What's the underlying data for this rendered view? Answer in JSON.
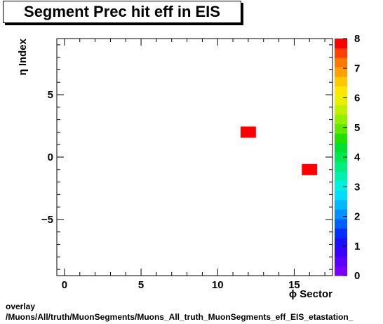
{
  "chart_data": {
    "type": "heatmap",
    "title": "Segment Prec hit eff in EIS",
    "xlabel": "ϕ Sector",
    "ylabel": "η Index",
    "xlim": [
      -0.5,
      17.5
    ],
    "ylim": [
      -9.5,
      9.5
    ],
    "x_ticks": [
      0,
      5,
      10,
      15
    ],
    "y_ticks": [
      -5,
      0,
      5
    ],
    "bin_width": 1,
    "cells": [
      {
        "x": 12,
        "y": 2,
        "value": 8
      },
      {
        "x": 16,
        "y": -1,
        "value": 8
      }
    ],
    "colorbar": {
      "min": 0,
      "max": 8,
      "ticks": [
        0,
        1,
        2,
        3,
        4,
        5,
        6,
        7,
        8
      ],
      "colors": [
        "#7a00ff",
        "#5a00ff",
        "#3a00ff",
        "#1a10ff",
        "#0030ff",
        "#0060ff",
        "#0090ff",
        "#00b8ff",
        "#00dcff",
        "#00f0e0",
        "#00f0b0",
        "#00ee80",
        "#00e850",
        "#00e030",
        "#20e000",
        "#60e800",
        "#90f000",
        "#c0f000",
        "#e8f000",
        "#ffe800",
        "#ffc800",
        "#ffa000",
        "#ff7800",
        "#ff4000",
        "#ff0000"
      ]
    },
    "grid": false
  },
  "footnote": {
    "line1": "overlay",
    "line2": "/Muons/All/truth/MuonSegments/Muons_All_truth_MuonSegments_eff_EIS_etastation_"
  }
}
